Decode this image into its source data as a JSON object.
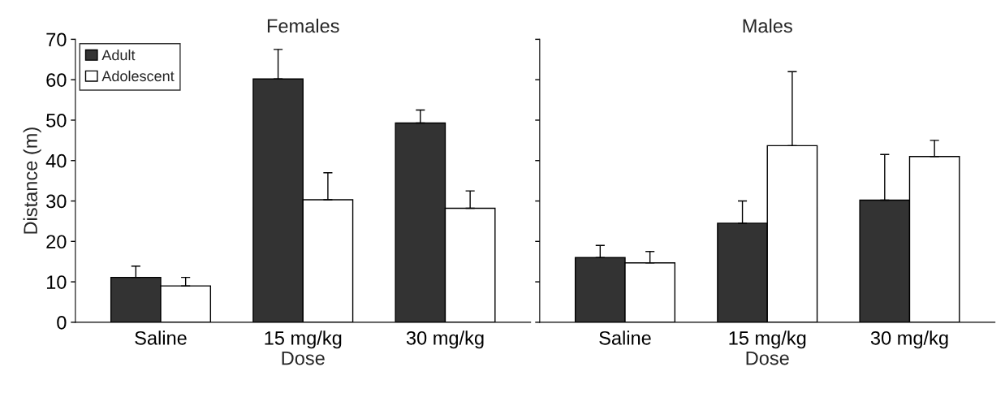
{
  "chart_data": [
    {
      "type": "bar",
      "title": "Females",
      "xlabel": "Dose",
      "ylabel": "Distance (m)",
      "categories": [
        "Saline",
        "15 mg/kg",
        "30 mg/kg"
      ],
      "series": [
        {
          "name": "Adult",
          "color": "#333333",
          "values": [
            11.1,
            60.2,
            49.3
          ],
          "errors": [
            [
              11.1,
              13.9
            ],
            [
              60.2,
              67.5
            ],
            [
              49.3,
              52.5
            ]
          ]
        },
        {
          "name": "Adolescent",
          "color": "#ffffff",
          "values": [
            9,
            30.3,
            28.2
          ],
          "errors": [
            [
              9,
              11.1
            ],
            [
              30.3,
              37
            ],
            [
              28.2,
              32.5
            ]
          ]
        }
      ],
      "ylim": [
        0,
        70
      ],
      "yticks": [
        0,
        10,
        20,
        30,
        40,
        50,
        60,
        70
      ],
      "grid": false,
      "legend": "top left"
    },
    {
      "type": "bar",
      "title": "Males",
      "xlabel": "Dose",
      "categories": [
        "Saline",
        "15 mg/kg",
        "30 mg/kg"
      ],
      "series": [
        {
          "color": "#333333",
          "values": [
            16,
            24.5,
            30.2
          ],
          "errors": [
            [
              16,
              19
            ],
            [
              24.5,
              30
            ],
            [
              30.2,
              41.5
            ]
          ]
        },
        {
          "color": "#ffffff",
          "values": [
            14.7,
            43.7,
            41
          ],
          "errors": [
            [
              14.7,
              17.5
            ],
            [
              43.7,
              62
            ],
            [
              41,
              45
            ]
          ]
        }
      ],
      "ylim": [
        0,
        70
      ],
      "yticks": [
        0,
        10,
        20,
        30,
        40,
        50,
        60,
        70
      ],
      "tick_labels": "x",
      "grid": false
    }
  ]
}
